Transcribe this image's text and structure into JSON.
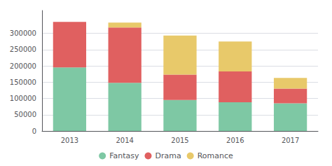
{
  "chart_data": {
    "type": "bar",
    "stacked": true,
    "categories": [
      "2013",
      "2014",
      "2015",
      "2016",
      "2017"
    ],
    "series": [
      {
        "name": "Fantasy",
        "color": "#7ec8a4",
        "values": [
          195000,
          148000,
          95000,
          88000,
          85000
        ]
      },
      {
        "name": "Drama",
        "color": "#e06060",
        "values": [
          140000,
          170000,
          78000,
          95000,
          45000
        ]
      },
      {
        "name": "Romance",
        "color": "#e8c96a",
        "values": [
          0,
          15000,
          120000,
          92000,
          33000
        ]
      }
    ],
    "ylim": [
      0,
      370000
    ],
    "yticks": [
      0,
      50000,
      100000,
      150000,
      200000,
      250000,
      300000
    ],
    "grid": true,
    "legend": "bottom"
  }
}
